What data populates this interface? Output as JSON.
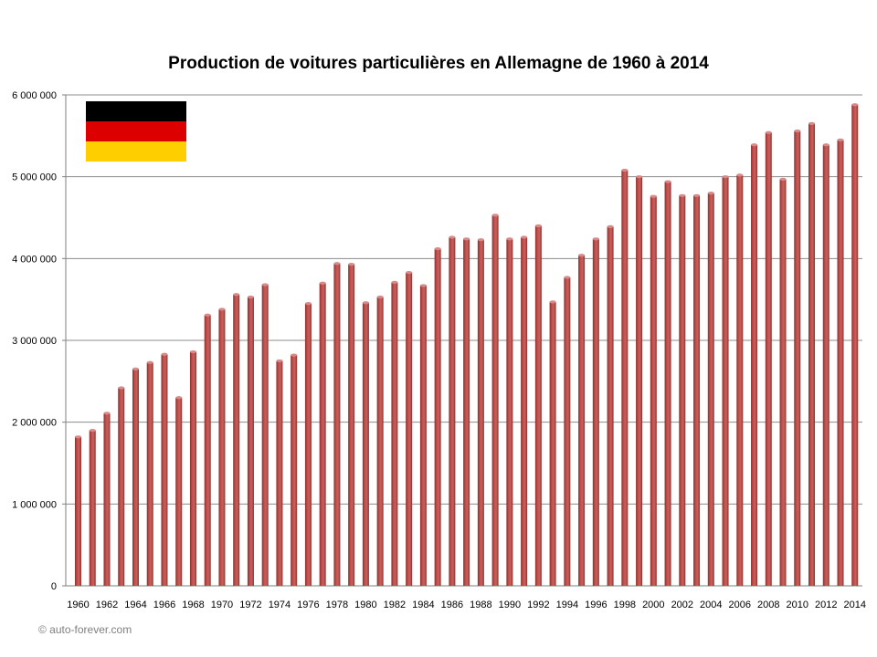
{
  "chart_data": {
    "type": "bar",
    "title": "Production de voitures particulières en Allemagne de 1960 à 2014",
    "xlabel": "",
    "ylabel": "",
    "ylim": [
      0,
      6000000
    ],
    "ytick_values": [
      0,
      1000000,
      2000000,
      3000000,
      4000000,
      5000000,
      6000000
    ],
    "ytick_labels": [
      "0",
      "1 000 000",
      "2 000 000",
      "3 000 000",
      "4 000 000",
      "5 000 000",
      "6 000 000"
    ],
    "grid": true,
    "legend": "none",
    "categories": [
      "1960",
      "1961",
      "1962",
      "1963",
      "1964",
      "1965",
      "1966",
      "1967",
      "1968",
      "1969",
      "1970",
      "1971",
      "1972",
      "1973",
      "1974",
      "1975",
      "1976",
      "1977",
      "1978",
      "1979",
      "1980",
      "1981",
      "1982",
      "1983",
      "1984",
      "1985",
      "1986",
      "1987",
      "1988",
      "1989",
      "1990",
      "1991",
      "1992",
      "1993",
      "1994",
      "1995",
      "1996",
      "1997",
      "1998",
      "1999",
      "2000",
      "2001",
      "2002",
      "2003",
      "2004",
      "2005",
      "2006",
      "2007",
      "2008",
      "2009",
      "2010",
      "2011",
      "2012",
      "2013",
      "2014"
    ],
    "xtick_labels": [
      "1960",
      "1962",
      "1964",
      "1966",
      "1968",
      "1970",
      "1972",
      "1974",
      "1976",
      "1978",
      "1980",
      "1982",
      "1984",
      "1986",
      "1988",
      "1990",
      "1992",
      "1994",
      "1996",
      "1998",
      "2000",
      "2002",
      "2004",
      "2006",
      "2008",
      "2010",
      "2012",
      "2014"
    ],
    "values": [
      1820000,
      1900000,
      2110000,
      2420000,
      2650000,
      2730000,
      2830000,
      2300000,
      2860000,
      3310000,
      3380000,
      3560000,
      3530000,
      3680000,
      2750000,
      2820000,
      3450000,
      3700000,
      3940000,
      3930000,
      3460000,
      3530000,
      3710000,
      3830000,
      3670000,
      4120000,
      4260000,
      4240000,
      4230000,
      4530000,
      4240000,
      4260000,
      4400000,
      3470000,
      3770000,
      4040000,
      4240000,
      4390000,
      5080000,
      5000000,
      4760000,
      4940000,
      4770000,
      4770000,
      4800000,
      5000000,
      5020000,
      5390000,
      5540000,
      4970000,
      5560000,
      5650000,
      5390000,
      5450000,
      5880000
    ],
    "bar_color": "#C0504D"
  },
  "flag_colors": [
    "#000000",
    "#DD0000",
    "#FFCE00"
  ],
  "credit": "© auto-forever.com"
}
